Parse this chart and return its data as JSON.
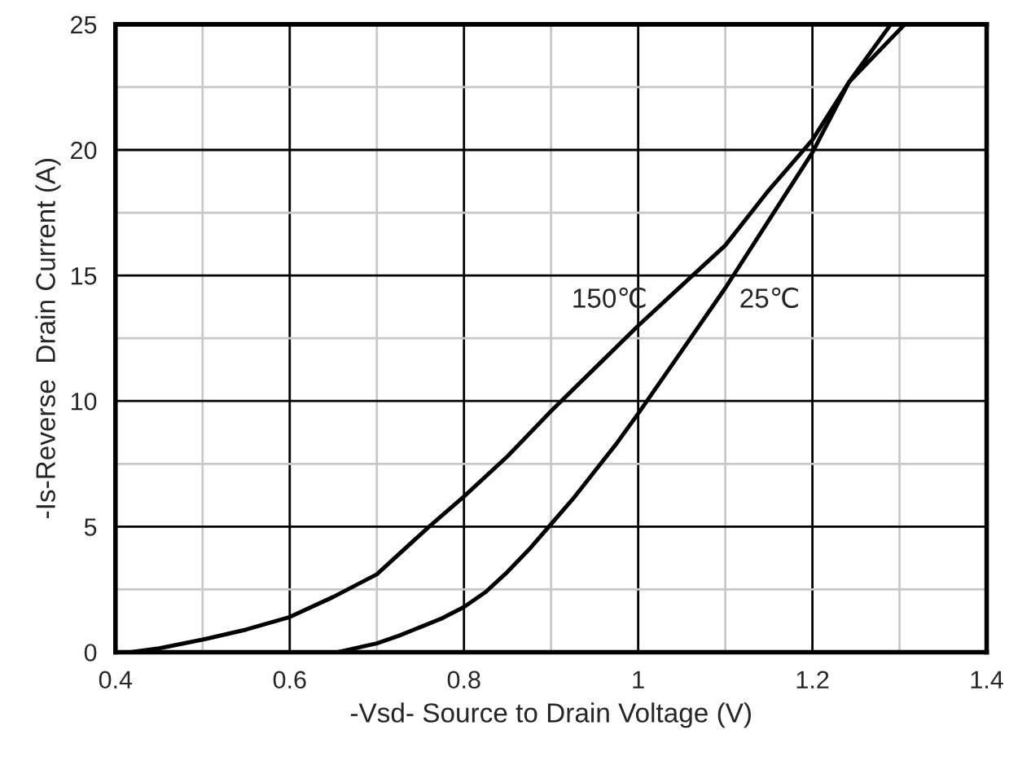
{
  "chart_data": {
    "type": "line",
    "xlabel": "-Vsd- Source to Drain Voltage (V)",
    "ylabel": "-Is-Reverse  Drain Current (A)",
    "xlim": [
      0.4,
      1.4
    ],
    "ylim": [
      0,
      25
    ],
    "xticks": [
      0.4,
      {
        "value": 0.5,
        "label": null
      },
      0.6,
      {
        "value": 0.7,
        "label": null
      },
      0.8,
      {
        "value": 0.9,
        "label": null
      },
      {
        "value": 1.0,
        "label": "1"
      },
      {
        "value": 1.1,
        "label": null
      },
      1.2,
      {
        "value": 1.3,
        "label": null
      },
      1.4
    ],
    "yticks": [
      0,
      {
        "value": 2.5,
        "label": null
      },
      5,
      {
        "value": 7.5,
        "label": null
      },
      10,
      {
        "value": 12.5,
        "label": null
      },
      15,
      {
        "value": 17.5,
        "label": null
      },
      20,
      {
        "value": 22.5,
        "label": null
      },
      25
    ],
    "grid": true,
    "legend": false,
    "marker": "none",
    "line_style": "solid",
    "series": [
      {
        "name": "150℃",
        "color": "#000000",
        "x": [
          0.417,
          0.45,
          0.5,
          0.55,
          0.6,
          0.65,
          0.7,
          0.76,
          0.8,
          0.85,
          0.9,
          0.95,
          1.0,
          1.05,
          1.1,
          1.15,
          1.2,
          1.242,
          1.306
        ],
        "values": [
          0,
          0.15,
          0.5,
          0.9,
          1.4,
          2.2,
          3.1,
          5,
          6.2,
          7.8,
          9.6,
          11.3,
          13.0,
          14.6,
          16.2,
          18.4,
          20.4,
          22.7,
          25
        ]
      },
      {
        "name": "25℃",
        "color": "#000000",
        "x": [
          0.655,
          0.7,
          0.725,
          0.75,
          0.775,
          0.8,
          0.825,
          0.85,
          0.875,
          0.9,
          0.925,
          0.95,
          0.975,
          1.0,
          1.05,
          1.1,
          1.15,
          1.2,
          1.242,
          1.29
        ],
        "values": [
          0,
          0.35,
          0.65,
          1.0,
          1.35,
          1.8,
          2.4,
          3.2,
          4.1,
          5.1,
          6.1,
          7.2,
          8.3,
          9.5,
          12.0,
          14.5,
          17.2,
          19.9,
          22.7,
          25
        ]
      }
    ]
  }
}
